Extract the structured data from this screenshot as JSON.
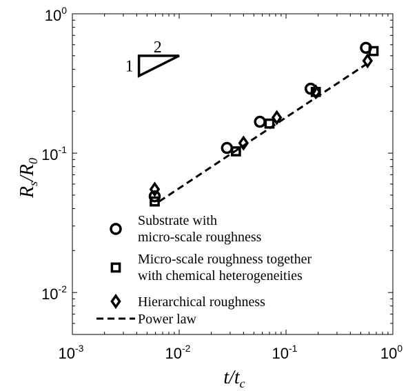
{
  "chart_data": {
    "type": "scatter",
    "xscale": "log",
    "yscale": "log",
    "xlim": [
      0.001,
      1
    ],
    "ylim": [
      0.005,
      1
    ],
    "xlabel": {
      "base": "t",
      "sub": "c",
      "sep": "/"
    },
    "ylabel": {
      "base": "R",
      "sub": "s",
      "sep": "/",
      "base2": "R",
      "sub2": "0"
    },
    "x_ticks": [
      {
        "base": "10",
        "exp": "-3",
        "value": 0.001
      },
      {
        "base": "10",
        "exp": "-2",
        "value": 0.01
      },
      {
        "base": "10",
        "exp": "-1",
        "value": 0.1
      },
      {
        "base": "10",
        "exp": "0",
        "value": 1
      }
    ],
    "y_ticks": [
      {
        "base": "10",
        "exp": "-2",
        "value": 0.01
      },
      {
        "base": "10",
        "exp": "-1",
        "value": 0.1
      },
      {
        "base": "10",
        "exp": "0",
        "value": 1
      }
    ],
    "series": [
      {
        "name_lines": [
          "Substrate with",
          "micro-scale roughness"
        ],
        "marker": "circle",
        "x": [
          0.0059,
          0.028,
          0.057,
          0.17,
          0.56
        ],
        "y": [
          0.049,
          0.109,
          0.168,
          0.29,
          0.57
        ]
      },
      {
        "name_lines": [
          "Micro-scale roughness together",
          "with chemical heterogeneities"
        ],
        "marker": "square",
        "x": [
          0.0059,
          0.034,
          0.07,
          0.19,
          0.66
        ],
        "y": [
          0.045,
          0.103,
          0.163,
          0.275,
          0.54
        ]
      },
      {
        "name_lines": [
          "Hierarchical roughness"
        ],
        "marker": "diamond",
        "x": [
          0.0059,
          0.04,
          0.082,
          0.19,
          0.58
        ],
        "y": [
          0.055,
          0.118,
          0.18,
          0.275,
          0.46
        ]
      }
    ],
    "fit": {
      "name": "Power law",
      "style": "dashed",
      "x": [
        0.0065,
        0.63
      ],
      "y": [
        0.045,
        0.46
      ]
    },
    "slope_triangle": {
      "run_label": "2",
      "rise_label": "1",
      "x": [
        0.0042,
        0.01
      ],
      "y_base": 0.5
    },
    "legend": {
      "position": "lower-left"
    }
  }
}
